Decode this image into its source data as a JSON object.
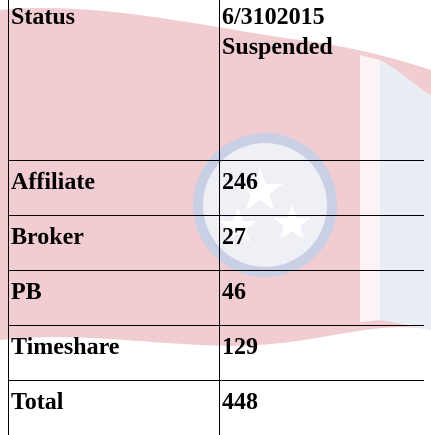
{
  "table": {
    "header": [
      "Status",
      "6/3102015 Suspended"
    ],
    "rows": [
      [
        "Affiliate",
        246
      ],
      [
        "Broker",
        27
      ],
      [
        "PB",
        46
      ],
      [
        "Timeshare",
        129
      ],
      [
        "Total",
        448
      ]
    ]
  }
}
